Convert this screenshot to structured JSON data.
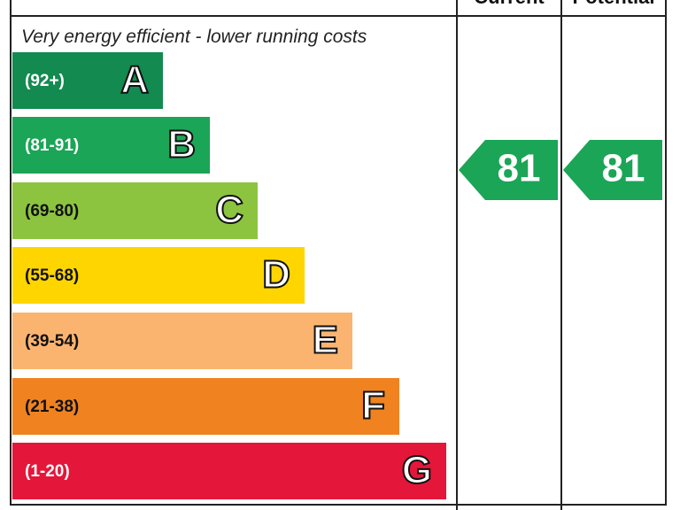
{
  "headers": {
    "current": "Current",
    "potential": "Potential"
  },
  "title": "Very energy efficient - lower running costs",
  "bands": [
    {
      "range": "(92+)",
      "letter": "A",
      "color": "#138a4f",
      "text_color": "#ffffff"
    },
    {
      "range": "(81-91)",
      "letter": "B",
      "color": "#1ba556",
      "text_color": "#ffffff"
    },
    {
      "range": "(69-80)",
      "letter": "C",
      "color": "#8cc43f",
      "text_color": "#111111"
    },
    {
      "range": "(55-68)",
      "letter": "D",
      "color": "#ffd500",
      "text_color": "#111111"
    },
    {
      "range": "(39-54)",
      "letter": "E",
      "color": "#fbb46f",
      "text_color": "#111111"
    },
    {
      "range": "(21-38)",
      "letter": "F",
      "color": "#f08220",
      "text_color": "#111111"
    },
    {
      "range": "(1-20)",
      "letter": "G",
      "color": "#e4163a",
      "text_color": "#ffffff"
    }
  ],
  "current": {
    "value": "81",
    "color": "#1ba556"
  },
  "potential": {
    "value": "81",
    "color": "#1ba556"
  }
}
